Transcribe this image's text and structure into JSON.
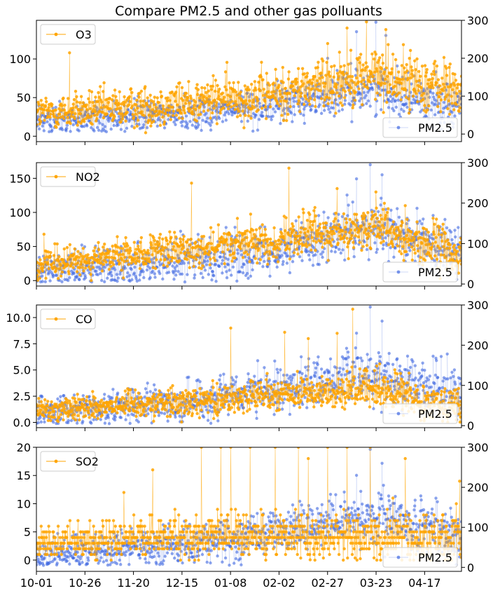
{
  "figure": {
    "title": "Compare PM2.5 and other gas polluants"
  },
  "x_axis": {
    "start": "10-01",
    "end": "05-07",
    "tick_labels": [
      "10-01",
      "10-26",
      "11-20",
      "12-15",
      "01-08",
      "02-02",
      "02-27",
      "03-23",
      "04-17"
    ]
  },
  "colors": {
    "gas": "#FFA500",
    "pm25": "#4169E1"
  },
  "chart_data": [
    {
      "type": "line",
      "gas": "O3",
      "ylim_left": [
        -7,
        150
      ],
      "yticks_left": [
        0,
        50,
        100
      ],
      "ylim_right": [
        -20,
        300
      ],
      "yticks_right": [
        0,
        100,
        200,
        300
      ],
      "legend_gas": "O3",
      "legend_pm": "PM2.5",
      "legend_position": "top-left",
      "series": [
        {
          "name": "O3",
          "axis": "left",
          "trend": [
            [
              0,
              30
            ],
            [
              25,
              33
            ],
            [
              50,
              38
            ],
            [
              75,
              43
            ],
            [
              100,
              50
            ],
            [
              125,
              55
            ],
            [
              150,
              70
            ],
            [
              175,
              80
            ],
            [
              200,
              68
            ],
            [
              219,
              58
            ]
          ],
          "spread": 14,
          "spikes": [
            [
              17,
              108
            ],
            [
              150,
              120
            ],
            [
              160,
              140
            ],
            [
              170,
              148
            ],
            [
              180,
              138
            ]
          ]
        },
        {
          "name": "PM2.5",
          "axis": "right",
          "trend": [
            [
              0,
              35
            ],
            [
              25,
              40
            ],
            [
              50,
              48
            ],
            [
              75,
              55
            ],
            [
              100,
              65
            ],
            [
              125,
              80
            ],
            [
              150,
              100
            ],
            [
              175,
              120
            ],
            [
              200,
              90
            ],
            [
              219,
              75
            ]
          ],
          "spread": 22,
          "spikes": [
            [
              165,
              270
            ],
            [
              175,
              295
            ],
            [
              180,
              260
            ],
            [
              150,
              200
            ]
          ]
        }
      ]
    },
    {
      "type": "line",
      "gas": "NO2",
      "ylim_left": [
        -8,
        173
      ],
      "yticks_left": [
        0,
        50,
        100,
        150
      ],
      "ylim_right": [
        -5,
        300
      ],
      "yticks_right": [
        0,
        100,
        200,
        300
      ],
      "legend_gas": "NO2",
      "legend_pm": "PM2.5",
      "legend_position": "top-left",
      "series": [
        {
          "name": "NO2",
          "axis": "left",
          "trend": [
            [
              0,
              20
            ],
            [
              25,
              30
            ],
            [
              50,
              38
            ],
            [
              75,
              45
            ],
            [
              100,
              52
            ],
            [
              125,
              60
            ],
            [
              150,
              72
            ],
            [
              175,
              75
            ],
            [
              200,
              55
            ],
            [
              219,
              35
            ]
          ],
          "spread": 13,
          "spikes": [
            [
              4,
              68
            ],
            [
              80,
              143
            ],
            [
              130,
              165
            ],
            [
              155,
              135
            ],
            [
              175,
              130
            ],
            [
              190,
              110
            ]
          ]
        },
        {
          "name": "PM2.5",
          "axis": "right",
          "trend": [
            [
              0,
              30
            ],
            [
              25,
              40
            ],
            [
              50,
              50
            ],
            [
              75,
              58
            ],
            [
              100,
              70
            ],
            [
              125,
              90
            ],
            [
              150,
              115
            ],
            [
              175,
              130
            ],
            [
              200,
              100
            ],
            [
              219,
              80
            ]
          ],
          "spread": 25,
          "spikes": [
            [
              165,
              260
            ],
            [
              172,
              295
            ],
            [
              178,
              270
            ],
            [
              160,
              220
            ]
          ]
        }
      ]
    },
    {
      "type": "line",
      "gas": "CO",
      "ylim_left": [
        -0.5,
        11.2
      ],
      "yticks_left": [
        0.0,
        2.5,
        5.0,
        7.5,
        10.0
      ],
      "ylim_right": [
        -5,
        300
      ],
      "yticks_right": [
        0,
        100,
        200,
        300
      ],
      "legend_gas": "CO",
      "legend_pm": "PM2.5",
      "legend_position": "top-left",
      "series": [
        {
          "name": "CO",
          "axis": "left",
          "trend": [
            [
              0,
              1.2
            ],
            [
              25,
              1.5
            ],
            [
              50,
              1.8
            ],
            [
              75,
              2.0
            ],
            [
              100,
              2.3
            ],
            [
              125,
              2.6
            ],
            [
              150,
              3.0
            ],
            [
              175,
              3.2
            ],
            [
              200,
              2.2
            ],
            [
              219,
              1.6
            ]
          ],
          "spread": 0.7,
          "spikes": [
            [
              100,
              9.0
            ],
            [
              128,
              8.6
            ],
            [
              140,
              8.0
            ],
            [
              163,
              10.8
            ],
            [
              155,
              8.5
            ]
          ]
        },
        {
          "name": "PM2.5",
          "axis": "right",
          "trend": [
            [
              0,
              30
            ],
            [
              25,
              40
            ],
            [
              50,
              50
            ],
            [
              75,
              58
            ],
            [
              100,
              70
            ],
            [
              125,
              90
            ],
            [
              150,
              115
            ],
            [
              175,
              130
            ],
            [
              200,
              100
            ],
            [
              219,
              80
            ]
          ],
          "spread": 25,
          "spikes": [
            [
              165,
              230
            ],
            [
              172,
              295
            ],
            [
              178,
              260
            ]
          ]
        }
      ]
    },
    {
      "type": "line",
      "gas": "SO2",
      "ylim_left": [
        -2,
        20
      ],
      "yticks_left": [
        0,
        5,
        10,
        15,
        20
      ],
      "ylim_right": [
        -10,
        300
      ],
      "yticks_right": [
        0,
        100,
        200,
        300
      ],
      "legend_gas": "SO2",
      "legend_pm": "PM2.5",
      "legend_position": "top-left",
      "series": [
        {
          "name": "SO2",
          "axis": "left",
          "trend": [
            [
              0,
              3
            ],
            [
              25,
              3.5
            ],
            [
              50,
              4
            ],
            [
              75,
              4
            ],
            [
              100,
              4.5
            ],
            [
              125,
              4.5
            ],
            [
              150,
              4
            ],
            [
              175,
              4
            ],
            [
              200,
              4
            ],
            [
              219,
              3.5
            ]
          ],
          "spread": 1.8,
          "spikes": [
            [
              45,
              12
            ],
            [
              60,
              16
            ],
            [
              85,
              20
            ],
            [
              95,
              20
            ],
            [
              100,
              20
            ],
            [
              110,
              20
            ],
            [
              123,
              20
            ],
            [
              135,
              20
            ],
            [
              140,
              18
            ],
            [
              150,
              20
            ],
            [
              160,
              20
            ],
            [
              172,
              20
            ],
            [
              190,
              18
            ],
            [
              218,
              14
            ]
          ]
        },
        {
          "name": "PM2.5",
          "axis": "right",
          "trend": [
            [
              0,
              30
            ],
            [
              25,
              40
            ],
            [
              50,
              50
            ],
            [
              75,
              58
            ],
            [
              100,
              70
            ],
            [
              125,
              90
            ],
            [
              150,
              115
            ],
            [
              175,
              130
            ],
            [
              200,
              100
            ],
            [
              219,
              80
            ]
          ],
          "spread": 25,
          "spikes": [
            [
              165,
              230
            ],
            [
              172,
              295
            ],
            [
              178,
              260
            ]
          ]
        }
      ]
    }
  ]
}
